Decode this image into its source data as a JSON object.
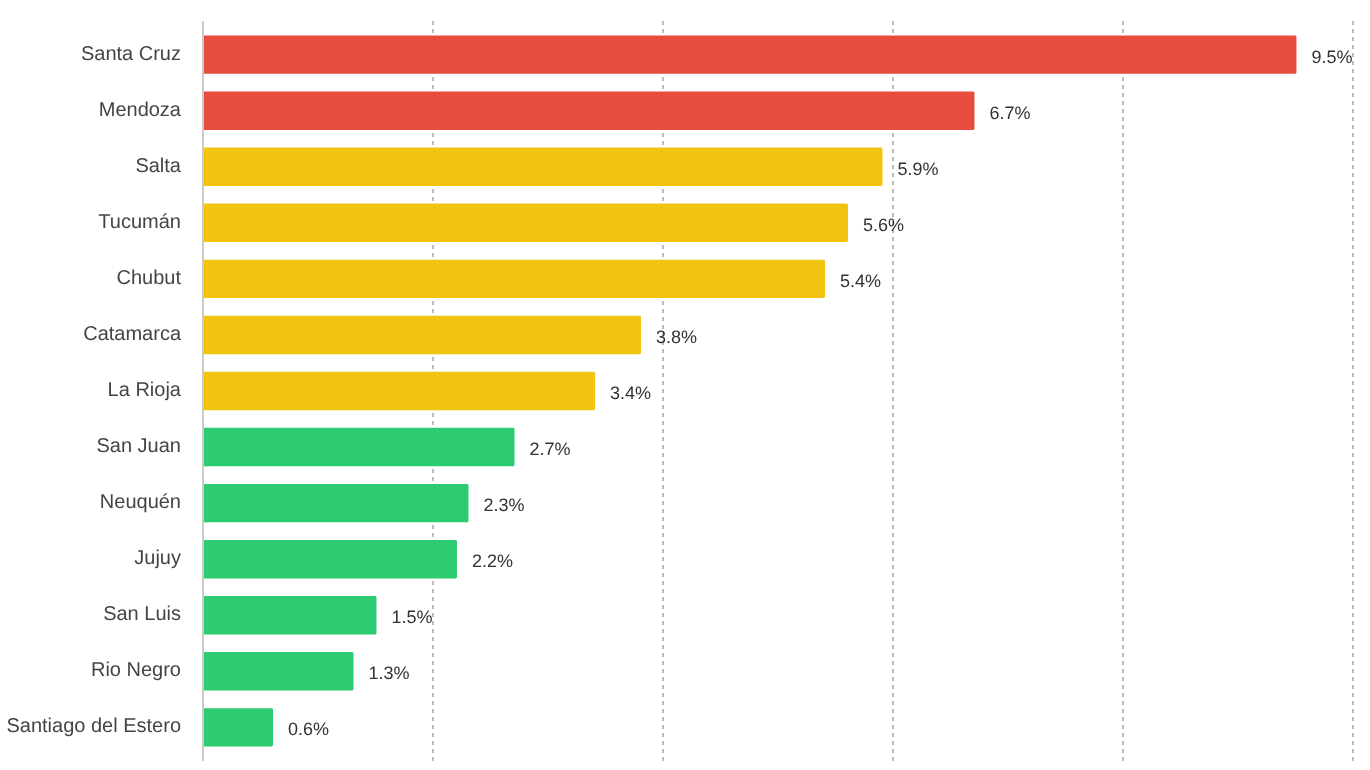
{
  "chart_data": {
    "type": "bar",
    "orientation": "horizontal",
    "categories": [
      "Santa Cruz",
      "Mendoza",
      "Salta",
      "Tucumán",
      "Chubut",
      "Catamarca",
      "La Rioja",
      "San Juan",
      "Neuquén",
      "Jujuy",
      "San Luis",
      "Rio Negro",
      "Santiago del Estero"
    ],
    "values": [
      9.5,
      6.7,
      5.9,
      5.6,
      5.4,
      3.8,
      3.4,
      2.7,
      2.3,
      2.2,
      1.5,
      1.3,
      0.6
    ],
    "value_labels": [
      "9.5%",
      "6.7%",
      "5.9%",
      "5.6%",
      "5.4%",
      "3.8%",
      "3.4%",
      "2.7%",
      "2.3%",
      "2.2%",
      "1.5%",
      "1.3%",
      "0.6%"
    ],
    "colors": [
      "#e74c3c",
      "#e74c3c",
      "#f1c40f",
      "#f1c40f",
      "#f1c40f",
      "#f1c40f",
      "#f1c40f",
      "#2ecc71",
      "#2ecc71",
      "#2ecc71",
      "#2ecc71",
      "#2ecc71",
      "#2ecc71"
    ],
    "xticks": [
      {
        "value": 0,
        "label": null
      },
      {
        "value": 2,
        "label": null
      },
      {
        "value": 4,
        "label": null
      },
      {
        "value": 6,
        "label": null
      },
      {
        "value": 8,
        "label": null
      },
      {
        "value": 10,
        "label": null
      }
    ],
    "grid": "x",
    "tick_labels": "y"
  }
}
